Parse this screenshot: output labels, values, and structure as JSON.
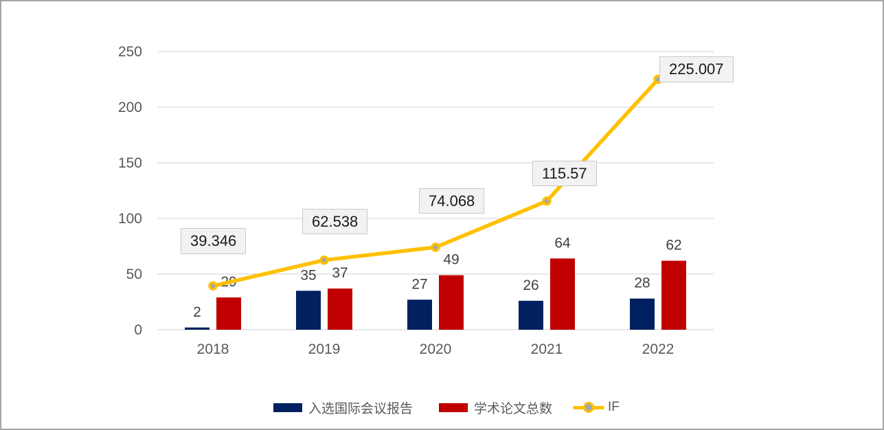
{
  "chart_data": {
    "type": "combo-bar-line",
    "title": "",
    "categories": [
      "2018",
      "2019",
      "2020",
      "2021",
      "2022"
    ],
    "series": [
      {
        "name": "入选国际会议报告",
        "type": "bar",
        "color": "#002060",
        "values": [
          2,
          35,
          27,
          26,
          28
        ],
        "value_labels": [
          "2",
          "35",
          "27",
          "26",
          "28"
        ]
      },
      {
        "name": "学术论文总数",
        "type": "bar",
        "color": "#C00000",
        "values": [
          29,
          37,
          49,
          64,
          62
        ],
        "value_labels": [
          "29",
          "37",
          "49",
          "64",
          "62"
        ]
      },
      {
        "name": "IF",
        "type": "line",
        "color": "#FFC000",
        "marker_fill": "#A6A6A6",
        "marker_outline": "#FFC000",
        "values": [
          39.346,
          62.538,
          74.068,
          115.57,
          225.007
        ],
        "value_labels": [
          "39.346",
          "62.538",
          "74.068",
          "115.57",
          "225.007"
        ]
      }
    ],
    "y_axis": {
      "min": 0,
      "max": 250,
      "tick_interval": 50,
      "tick_labels": [
        "0",
        "50",
        "100",
        "150",
        "200",
        "250"
      ]
    },
    "x_axis": {
      "tick_labels": [
        "2018",
        "2019",
        "2020",
        "2021",
        "2022"
      ]
    },
    "grid": "horizontal",
    "legend_position": "bottom"
  },
  "colors": {
    "gridline": "#d9d9d9",
    "axis_text": "#595959",
    "bar_label_text": "#404040",
    "if_label_bg": "#f2f2f2",
    "if_label_border": "#c9c9c9",
    "if_label_text": "#1a1a1a",
    "frame_border": "#a6a6a6",
    "background": "#ffffff"
  }
}
